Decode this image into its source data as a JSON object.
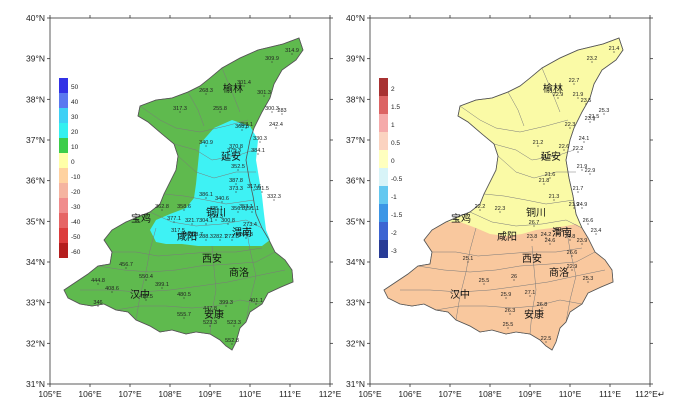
{
  "left_map": {
    "lat_labels": [
      "40°N",
      "39°N",
      "38°N",
      "37°N",
      "36°N",
      "35°N",
      "34°N",
      "33°N",
      "32°N",
      "31°N"
    ],
    "lon_labels": [
      "105°E",
      "106°E",
      "107°E",
      "108°E",
      "109°E",
      "110°E",
      "111°E",
      "112°E"
    ],
    "legend": [
      "50",
      "40",
      "30",
      "20",
      "10",
      "0",
      "-10",
      "-20",
      "-30",
      "-40",
      "-50",
      "-60"
    ],
    "legend_colors": [
      "#3232e6",
      "#5a78f0",
      "#3ed0f5",
      "#33f0f0",
      "#3ccd4a",
      "#ffffa8",
      "#ffd2a0",
      "#f5b4a0",
      "#f08c8c",
      "#e66464",
      "#dc3c3c",
      "#b41e1e"
    ],
    "cities": [
      "榆林",
      "延安",
      "铜川",
      "宝鸡",
      "咸阳",
      "渭南",
      "西安",
      "商洛",
      "汉中",
      "安康"
    ],
    "values": [
      "314.9",
      "309.9",
      "301.4",
      "268.3",
      "301.3",
      "300.3",
      "255.8",
      "317.3",
      "283",
      "358.1",
      "242.4",
      "368.8",
      "330.3",
      "340.9",
      "370.8",
      "375.3",
      "384.1",
      "352.5",
      "387.8",
      "386.1",
      "317.6",
      "373.3",
      "391.5",
      "340.6",
      "332.3",
      "425.1",
      "362.8",
      "358.6",
      "353.1",
      "299.3",
      "356.8",
      "291.1",
      "377.1",
      "321.7",
      "304.1",
      "300.8",
      "317.5",
      "273.4",
      "260.6",
      "308.7",
      "288.3",
      "282.7",
      "272.3",
      "266.3",
      "456.7",
      "550.4",
      "408.6",
      "399.1",
      "444.8",
      "480.5",
      "419.5",
      "399.3",
      "401.1",
      "346",
      "523.3",
      "555.7",
      "523.3",
      "447.8",
      "552.8"
    ],
    "colors": {
      "green": "#5fba4e",
      "cyan": "#3ef2f4"
    }
  },
  "right_map": {
    "lat_labels": [
      "40°N",
      "39°N",
      "38°N",
      "37°N",
      "36°N",
      "35°N",
      "34°N",
      "33°N",
      "32°N",
      "31°N"
    ],
    "lon_labels": [
      "105°E",
      "106°E",
      "107°E",
      "108°E",
      "109°E",
      "110°E",
      "111°E",
      "112°E↵"
    ],
    "legend": [
      "2",
      "1.5",
      "1",
      "0.5",
      "0",
      "-0.5",
      "-1",
      "-1.5",
      "-2",
      "-3"
    ],
    "legend_colors": [
      "#a83232",
      "#dc6464",
      "#f5aaaa",
      "#fbd3c0",
      "#ffffbf",
      "#d8f4f8",
      "#64c8f0",
      "#3c96e6",
      "#3c64d2",
      "#283c96"
    ],
    "cities": [
      "榆林",
      "延安",
      "铜川",
      "宝鸡",
      "咸阳",
      "渭南",
      "西安",
      "商洛",
      "汉中",
      "安康"
    ],
    "values": [
      "21.4",
      "22.7",
      "23.2",
      "22.9",
      "21.9",
      "23.5",
      "23.9",
      "22.3",
      "21.5",
      "25.3",
      "21.2",
      "22.6",
      "22.2",
      "24.1",
      "21.7",
      "21.9",
      "21.6",
      "22.9",
      "21.8",
      "21.3",
      "21.7",
      "21.9",
      "24.9",
      "26.6",
      "23.4",
      "22.2",
      "22.3",
      "26.7",
      "24.2",
      "25.3",
      "23.8",
      "24.6",
      "24.8",
      "23.9",
      "25.1",
      "26.6",
      "22.9",
      "25.3",
      "25.5",
      "26",
      "25.9",
      "27.1",
      "26.8",
      "26.3",
      "25.5",
      "22.5"
    ],
    "colors": {
      "yellow": "#fafaa6",
      "peach": "#f9c89e"
    }
  }
}
